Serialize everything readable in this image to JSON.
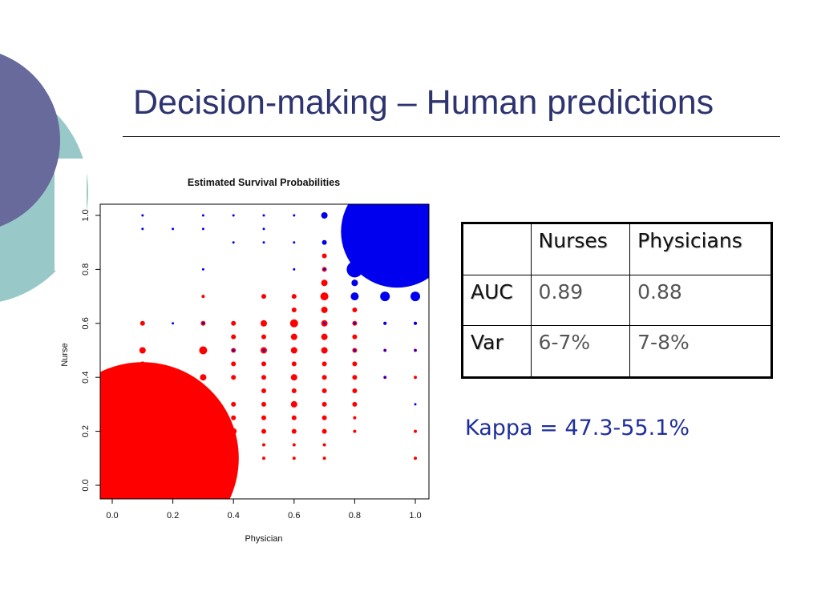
{
  "slide": {
    "title": "Decision-making – Human predictions"
  },
  "colors": {
    "title": "#2e3470",
    "nurse_series": "#ff0000",
    "physician_series": "#0000ee",
    "kappa": "#1f2e9c",
    "decor_purple": "#676a9b",
    "decor_teal": "#98c8c8"
  },
  "chart_data": {
    "type": "scatter",
    "title": "Estimated Survival Probabilities",
    "xlabel": "Physician",
    "ylabel": "Nurse",
    "xlim": [
      0,
      1
    ],
    "ylim": [
      0,
      1
    ],
    "xticks": [
      "0.0",
      "0.2",
      "0.4",
      "0.6",
      "0.8",
      "1.0"
    ],
    "yticks": [
      "0.0",
      "0.2",
      "0.4",
      "0.6",
      "0.8",
      "1.0"
    ],
    "grid": false,
    "series": [
      {
        "color": "#ff0000",
        "points": [
          {
            "x": 0.1,
            "y": 0.1,
            "size": 120
          },
          {
            "x": 0.1,
            "y": 0.6,
            "size": 3
          },
          {
            "x": 0.1,
            "y": 0.5,
            "size": 4
          },
          {
            "x": 0.1,
            "y": 0.45,
            "size": 3
          },
          {
            "x": 0.1,
            "y": 0.4,
            "size": 4
          },
          {
            "x": 0.1,
            "y": 0.36,
            "size": 3
          },
          {
            "x": 0.1,
            "y": 0.33,
            "size": 3
          },
          {
            "x": 0.2,
            "y": 0.4,
            "size": 3
          },
          {
            "x": 0.2,
            "y": 0.37,
            "size": 3
          },
          {
            "x": 0.2,
            "y": 0.33,
            "size": 3
          },
          {
            "x": 0.2,
            "y": 0.3,
            "size": 5
          },
          {
            "x": 0.2,
            "y": 0.2,
            "size": 4
          },
          {
            "x": 0.2,
            "y": 0.1,
            "size": 3
          },
          {
            "x": 0.3,
            "y": 0.6,
            "size": 3
          },
          {
            "x": 0.3,
            "y": 0.5,
            "size": 5
          },
          {
            "x": 0.3,
            "y": 0.4,
            "size": 4
          },
          {
            "x": 0.3,
            "y": 0.35,
            "size": 3
          },
          {
            "x": 0.3,
            "y": 0.3,
            "size": 5
          },
          {
            "x": 0.3,
            "y": 0.25,
            "size": 3
          },
          {
            "x": 0.3,
            "y": 0.2,
            "size": 4
          },
          {
            "x": 0.3,
            "y": 0.15,
            "size": 3
          },
          {
            "x": 0.3,
            "y": 0.7,
            "size": 2
          },
          {
            "x": 0.4,
            "y": 0.6,
            "size": 3
          },
          {
            "x": 0.4,
            "y": 0.55,
            "size": 3
          },
          {
            "x": 0.4,
            "y": 0.5,
            "size": 3
          },
          {
            "x": 0.4,
            "y": 0.45,
            "size": 3
          },
          {
            "x": 0.4,
            "y": 0.4,
            "size": 3
          },
          {
            "x": 0.4,
            "y": 0.3,
            "size": 3
          },
          {
            "x": 0.4,
            "y": 0.25,
            "size": 3
          },
          {
            "x": 0.4,
            "y": 0.2,
            "size": 4
          },
          {
            "x": 0.4,
            "y": 0.15,
            "size": 3
          },
          {
            "x": 0.4,
            "y": 0.1,
            "size": 3
          },
          {
            "x": 0.5,
            "y": 0.7,
            "size": 3
          },
          {
            "x": 0.5,
            "y": 0.6,
            "size": 4
          },
          {
            "x": 0.5,
            "y": 0.55,
            "size": 3
          },
          {
            "x": 0.5,
            "y": 0.5,
            "size": 4
          },
          {
            "x": 0.5,
            "y": 0.45,
            "size": 3
          },
          {
            "x": 0.5,
            "y": 0.4,
            "size": 3
          },
          {
            "x": 0.5,
            "y": 0.35,
            "size": 3
          },
          {
            "x": 0.5,
            "y": 0.3,
            "size": 3
          },
          {
            "x": 0.5,
            "y": 0.25,
            "size": 3
          },
          {
            "x": 0.5,
            "y": 0.2,
            "size": 3
          },
          {
            "x": 0.5,
            "y": 0.15,
            "size": 2
          },
          {
            "x": 0.5,
            "y": 0.1,
            "size": 2
          },
          {
            "x": 0.6,
            "y": 0.7,
            "size": 3
          },
          {
            "x": 0.6,
            "y": 0.65,
            "size": 3
          },
          {
            "x": 0.6,
            "y": 0.6,
            "size": 5
          },
          {
            "x": 0.6,
            "y": 0.55,
            "size": 4
          },
          {
            "x": 0.6,
            "y": 0.5,
            "size": 4
          },
          {
            "x": 0.6,
            "y": 0.45,
            "size": 3
          },
          {
            "x": 0.6,
            "y": 0.4,
            "size": 4
          },
          {
            "x": 0.6,
            "y": 0.35,
            "size": 3
          },
          {
            "x": 0.6,
            "y": 0.3,
            "size": 4
          },
          {
            "x": 0.6,
            "y": 0.25,
            "size": 3
          },
          {
            "x": 0.6,
            "y": 0.2,
            "size": 3
          },
          {
            "x": 0.6,
            "y": 0.15,
            "size": 2
          },
          {
            "x": 0.6,
            "y": 0.1,
            "size": 2
          },
          {
            "x": 0.7,
            "y": 0.85,
            "size": 3
          },
          {
            "x": 0.7,
            "y": 0.8,
            "size": 3
          },
          {
            "x": 0.7,
            "y": 0.75,
            "size": 4
          },
          {
            "x": 0.7,
            "y": 0.7,
            "size": 5
          },
          {
            "x": 0.7,
            "y": 0.65,
            "size": 4
          },
          {
            "x": 0.7,
            "y": 0.6,
            "size": 4
          },
          {
            "x": 0.7,
            "y": 0.55,
            "size": 4
          },
          {
            "x": 0.7,
            "y": 0.5,
            "size": 4
          },
          {
            "x": 0.7,
            "y": 0.45,
            "size": 3
          },
          {
            "x": 0.7,
            "y": 0.4,
            "size": 3
          },
          {
            "x": 0.7,
            "y": 0.35,
            "size": 3
          },
          {
            "x": 0.7,
            "y": 0.3,
            "size": 3
          },
          {
            "x": 0.7,
            "y": 0.25,
            "size": 3
          },
          {
            "x": 0.7,
            "y": 0.2,
            "size": 3
          },
          {
            "x": 0.7,
            "y": 0.15,
            "size": 2
          },
          {
            "x": 0.7,
            "y": 0.1,
            "size": 2
          },
          {
            "x": 0.8,
            "y": 1.0,
            "size": 3
          },
          {
            "x": 0.8,
            "y": 0.9,
            "size": 4
          },
          {
            "x": 0.8,
            "y": 0.8,
            "size": 4
          },
          {
            "x": 0.8,
            "y": 0.75,
            "size": 4
          },
          {
            "x": 0.8,
            "y": 0.7,
            "size": 4
          },
          {
            "x": 0.8,
            "y": 0.65,
            "size": 3
          },
          {
            "x": 0.8,
            "y": 0.6,
            "size": 3
          },
          {
            "x": 0.8,
            "y": 0.55,
            "size": 3
          },
          {
            "x": 0.8,
            "y": 0.5,
            "size": 3
          },
          {
            "x": 0.8,
            "y": 0.45,
            "size": 3
          },
          {
            "x": 0.8,
            "y": 0.4,
            "size": 3
          },
          {
            "x": 0.8,
            "y": 0.35,
            "size": 3
          },
          {
            "x": 0.8,
            "y": 0.3,
            "size": 3
          },
          {
            "x": 0.8,
            "y": 0.25,
            "size": 2
          },
          {
            "x": 0.8,
            "y": 0.2,
            "size": 2
          },
          {
            "x": 0.9,
            "y": 0.95,
            "size": 3
          },
          {
            "x": 0.9,
            "y": 0.9,
            "size": 3
          },
          {
            "x": 0.9,
            "y": 0.85,
            "size": 3
          },
          {
            "x": 0.9,
            "y": 0.8,
            "size": 3
          },
          {
            "x": 0.9,
            "y": 0.7,
            "size": 4
          },
          {
            "x": 0.9,
            "y": 0.6,
            "size": 2
          },
          {
            "x": 0.9,
            "y": 0.5,
            "size": 2
          },
          {
            "x": 0.9,
            "y": 0.4,
            "size": 2
          },
          {
            "x": 1.0,
            "y": 0.95,
            "size": 3
          },
          {
            "x": 1.0,
            "y": 0.9,
            "size": 3
          },
          {
            "x": 1.0,
            "y": 0.85,
            "size": 3
          },
          {
            "x": 1.0,
            "y": 0.8,
            "size": 3
          },
          {
            "x": 1.0,
            "y": 0.7,
            "size": 3
          },
          {
            "x": 1.0,
            "y": 0.6,
            "size": 2
          },
          {
            "x": 1.0,
            "y": 0.5,
            "size": 2
          },
          {
            "x": 1.0,
            "y": 0.4,
            "size": 2
          },
          {
            "x": 1.0,
            "y": 0.2,
            "size": 2
          },
          {
            "x": 1.0,
            "y": 0.1,
            "size": 2
          }
        ]
      },
      {
        "color": "#0000ee",
        "points": [
          {
            "x": 0.94,
            "y": 0.94,
            "size": 70
          },
          {
            "x": 1.0,
            "y": 0.8,
            "size": 13
          },
          {
            "x": 0.9,
            "y": 0.8,
            "size": 10
          },
          {
            "x": 0.8,
            "y": 0.8,
            "size": 10
          },
          {
            "x": 0.8,
            "y": 0.9,
            "size": 8
          },
          {
            "x": 0.8,
            "y": 1.0,
            "size": 5
          },
          {
            "x": 0.8,
            "y": 0.7,
            "size": 5
          },
          {
            "x": 0.9,
            "y": 0.7,
            "size": 6
          },
          {
            "x": 1.0,
            "y": 0.7,
            "size": 6
          },
          {
            "x": 0.7,
            "y": 1.0,
            "size": 4
          },
          {
            "x": 0.7,
            "y": 0.9,
            "size": 3
          },
          {
            "x": 0.8,
            "y": 0.85,
            "size": 5
          },
          {
            "x": 0.8,
            "y": 0.75,
            "size": 4
          },
          {
            "x": 0.9,
            "y": 0.6,
            "size": 2
          },
          {
            "x": 1.0,
            "y": 0.6,
            "size": 2
          },
          {
            "x": 0.1,
            "y": 1.0,
            "size": 1.5
          },
          {
            "x": 0.1,
            "y": 0.95,
            "size": 1.5
          },
          {
            "x": 0.2,
            "y": 0.95,
            "size": 1.5
          },
          {
            "x": 0.3,
            "y": 1.0,
            "size": 1.5
          },
          {
            "x": 0.3,
            "y": 0.95,
            "size": 1.5
          },
          {
            "x": 0.4,
            "y": 1.0,
            "size": 1.5
          },
          {
            "x": 0.4,
            "y": 0.9,
            "size": 1.5
          },
          {
            "x": 0.5,
            "y": 1.0,
            "size": 1.5
          },
          {
            "x": 0.5,
            "y": 0.95,
            "size": 1.5
          },
          {
            "x": 0.5,
            "y": 0.9,
            "size": 1.5
          },
          {
            "x": 0.6,
            "y": 1.0,
            "size": 1.5
          },
          {
            "x": 0.6,
            "y": 0.9,
            "size": 1.5
          },
          {
            "x": 0.6,
            "y": 0.8,
            "size": 1.5
          },
          {
            "x": 0.7,
            "y": 0.8,
            "size": 1.5
          },
          {
            "x": 0.7,
            "y": 0.6,
            "size": 1.5
          },
          {
            "x": 0.8,
            "y": 0.6,
            "size": 1.5
          },
          {
            "x": 0.8,
            "y": 0.5,
            "size": 1.5
          },
          {
            "x": 0.9,
            "y": 0.5,
            "size": 1.5
          },
          {
            "x": 1.0,
            "y": 0.5,
            "size": 1.5
          },
          {
            "x": 0.9,
            "y": 0.4,
            "size": 1.5
          },
          {
            "x": 1.0,
            "y": 0.3,
            "size": 1.5
          },
          {
            "x": 0.5,
            "y": 0.5,
            "size": 1.5
          },
          {
            "x": 0.4,
            "y": 0.5,
            "size": 1.5
          },
          {
            "x": 0.3,
            "y": 0.8,
            "size": 1.5
          },
          {
            "x": 0.2,
            "y": 0.6,
            "size": 1.5
          },
          {
            "x": 0.3,
            "y": 0.6,
            "size": 1.5
          }
        ]
      }
    ]
  },
  "table": {
    "header": [
      "",
      "Nurses",
      "Physicians"
    ],
    "rows": [
      {
        "label": "AUC",
        "nurses": "0.89",
        "physicians": "0.88"
      },
      {
        "label": "Var",
        "nurses": "6-7%",
        "physicians": "7-8%"
      }
    ]
  },
  "kappa": "Kappa = 47.3-55.1%"
}
